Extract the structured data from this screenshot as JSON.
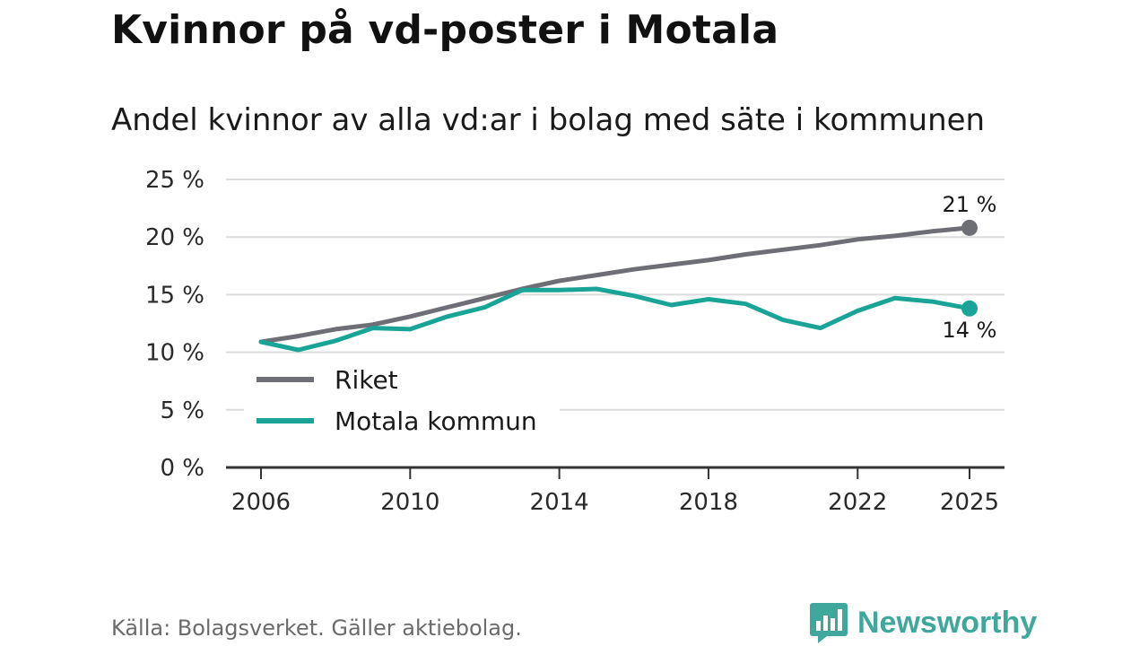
{
  "title": "Kvinnor på vd-poster i Motala",
  "subtitle": "Andel kvinnor av alla vd:ar i bolag med säte i kommunen",
  "source": "Källa: Bolagsverket. Gäller aktiebolag.",
  "brand": {
    "name": "Newsworthy",
    "icon": "newsworthy-logo-icon"
  },
  "colors": {
    "riket": "#6e6e76",
    "motala": "#1aa497",
    "grid": "#dcdcdc",
    "axis": "#333333"
  },
  "chart_data": {
    "type": "line",
    "title": "Kvinnor på vd-poster i Motala",
    "subtitle": "Andel kvinnor av alla vd:ar i bolag med säte i kommunen",
    "xlabel": "",
    "ylabel": "",
    "ylim": [
      0,
      25
    ],
    "xlim": [
      2006,
      2025
    ],
    "y_ticks": [
      0,
      5,
      10,
      15,
      20,
      25
    ],
    "y_tick_labels": [
      "0 %",
      "5 %",
      "10 %",
      "15 %",
      "20 %",
      "25 %"
    ],
    "x_ticks": [
      2006,
      2010,
      2014,
      2018,
      2022,
      2025
    ],
    "x_tick_labels": [
      "2006",
      "2010",
      "2014",
      "2018",
      "2022",
      "2025"
    ],
    "grid": true,
    "legend_position": "bottom-left",
    "x": [
      2006,
      2007,
      2008,
      2009,
      2010,
      2011,
      2012,
      2013,
      2014,
      2015,
      2016,
      2017,
      2018,
      2019,
      2020,
      2021,
      2022,
      2023,
      2024,
      2025
    ],
    "series": [
      {
        "name": "Riket",
        "color": "#6e6e76",
        "values": [
          10.9,
          11.4,
          12.0,
          12.4,
          13.1,
          13.9,
          14.7,
          15.5,
          16.2,
          16.7,
          17.2,
          17.6,
          18.0,
          18.5,
          18.9,
          19.3,
          19.8,
          20.1,
          20.5,
          20.8
        ],
        "end_label": "21 %"
      },
      {
        "name": "Motala kommun",
        "color": "#1aa497",
        "values": [
          10.9,
          10.2,
          11.0,
          12.1,
          12.0,
          13.1,
          13.9,
          15.4,
          15.4,
          15.5,
          14.9,
          14.1,
          14.6,
          14.2,
          12.8,
          12.1,
          13.6,
          14.7,
          14.4,
          13.8
        ],
        "end_label": "14 %"
      }
    ]
  }
}
